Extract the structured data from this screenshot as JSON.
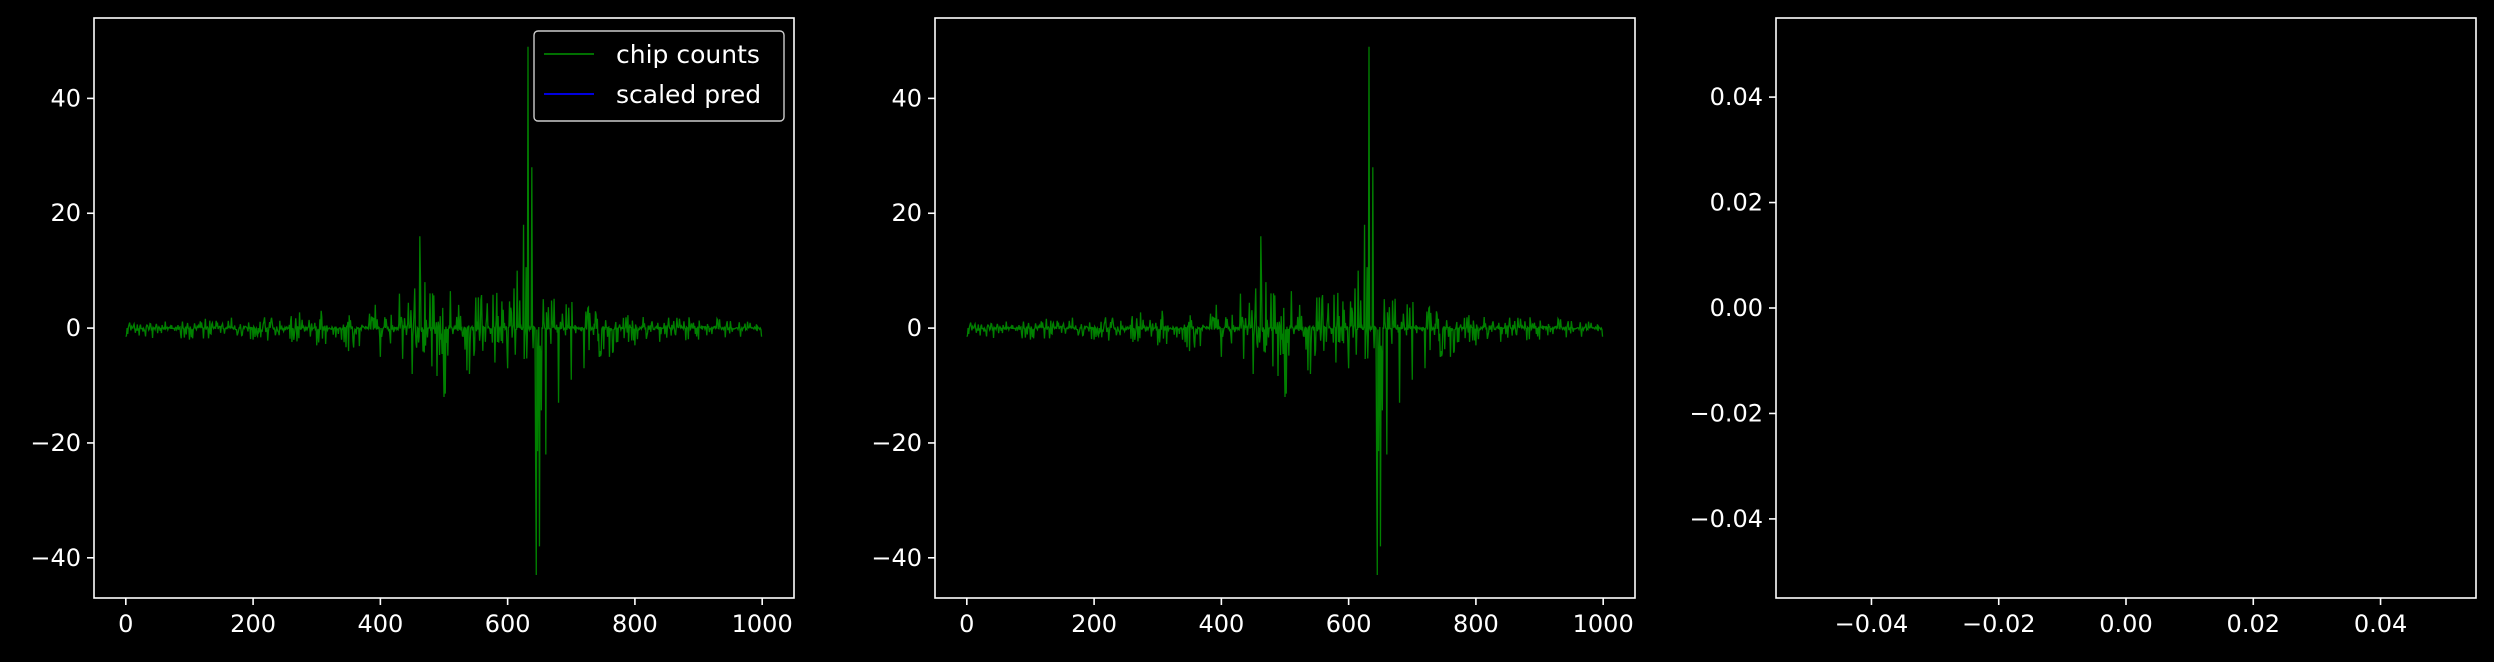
{
  "figure": {
    "background": "#000000",
    "foreground": "#ffffff"
  },
  "chart_data": [
    {
      "type": "line",
      "title": "",
      "xlabel": "",
      "ylabel": "",
      "xlim": [
        -50,
        1050
      ],
      "ylim": [
        -47,
        54
      ],
      "xticks": [
        0,
        200,
        400,
        600,
        800,
        1000
      ],
      "xtick_labels": [
        "0",
        "200",
        "400",
        "600",
        "800",
        "1000"
      ],
      "yticks": [
        -40,
        -20,
        0,
        20,
        40
      ],
      "ytick_labels": [
        "−40",
        "−20",
        "0",
        "20",
        "40"
      ],
      "grid": false,
      "legend": {
        "position": "top-right",
        "entries": [
          {
            "label": "chip counts",
            "color": "#008000"
          },
          {
            "label": "scaled pred",
            "color": "#0000ff"
          }
        ]
      },
      "series": [
        {
          "name": "chip counts",
          "color": "#008000",
          "x_range": [
            0,
            999
          ],
          "envelope_x": [
            0,
            100,
            200,
            300,
            350,
            400,
            430,
            450,
            462,
            470,
            500,
            540,
            580,
            600,
            615,
            625,
            632,
            638,
            645,
            650,
            660,
            680,
            700,
            720,
            760,
            800,
            900,
            999
          ],
          "envelope_max": [
            1,
            1.5,
            2,
            3,
            4,
            5,
            6,
            7,
            16,
            8,
            7,
            6,
            6,
            7,
            10,
            18,
            49,
            28,
            8,
            5,
            6,
            5,
            5,
            4,
            3,
            2,
            2,
            1
          ],
          "envelope_min": [
            -1.5,
            -2,
            -2,
            -3,
            -4,
            -5,
            -5,
            -8,
            -7,
            -6,
            -12,
            -8,
            -6,
            -7,
            -6,
            -7,
            -5,
            -8,
            -43,
            -38,
            -22,
            -13,
            -9,
            -7,
            -5,
            -3,
            -2,
            -1.5
          ]
        },
        {
          "name": "scaled pred",
          "color": "#0000ff",
          "values": []
        }
      ]
    },
    {
      "type": "line",
      "title": "",
      "xlabel": "",
      "ylabel": "",
      "xlim": [
        -50,
        1050
      ],
      "ylim": [
        -47,
        54
      ],
      "xticks": [
        0,
        200,
        400,
        600,
        800,
        1000
      ],
      "xtick_labels": [
        "0",
        "200",
        "400",
        "600",
        "800",
        "1000"
      ],
      "yticks": [
        -40,
        -20,
        0,
        20,
        40
      ],
      "ytick_labels": [
        "−40",
        "−20",
        "0",
        "20",
        "40"
      ],
      "grid": false,
      "series": [
        {
          "color": "#008000",
          "x_range": [
            0,
            999
          ],
          "envelope_x": [
            0,
            100,
            200,
            300,
            350,
            400,
            430,
            450,
            462,
            470,
            500,
            540,
            580,
            600,
            615,
            625,
            632,
            638,
            645,
            650,
            660,
            680,
            700,
            720,
            760,
            800,
            900,
            999
          ],
          "envelope_max": [
            1,
            1.5,
            2,
            3,
            4,
            5,
            6,
            7,
            16,
            8,
            7,
            6,
            6,
            7,
            10,
            18,
            49,
            28,
            8,
            5,
            6,
            5,
            5,
            4,
            3,
            2,
            2,
            1
          ],
          "envelope_min": [
            -1.5,
            -2,
            -2,
            -3,
            -4,
            -5,
            -5,
            -8,
            -7,
            -6,
            -12,
            -8,
            -6,
            -7,
            -6,
            -7,
            -5,
            -8,
            -43,
            -38,
            -22,
            -13,
            -9,
            -7,
            -5,
            -3,
            -2,
            -1.5
          ]
        }
      ]
    },
    {
      "type": "line",
      "title": "",
      "xlabel": "",
      "ylabel": "",
      "xlim": [
        -0.055,
        0.055
      ],
      "ylim": [
        -0.055,
        0.055
      ],
      "xticks": [
        -0.04,
        -0.02,
        0.0,
        0.02,
        0.04
      ],
      "xtick_labels": [
        "−0.04",
        "−0.02",
        "0.00",
        "0.02",
        "0.04"
      ],
      "yticks": [
        -0.04,
        -0.02,
        0.0,
        0.02,
        0.04
      ],
      "ytick_labels": [
        "−0.04",
        "−0.02",
        "0.00",
        "0.02",
        "0.04"
      ],
      "grid": false,
      "series": []
    }
  ]
}
